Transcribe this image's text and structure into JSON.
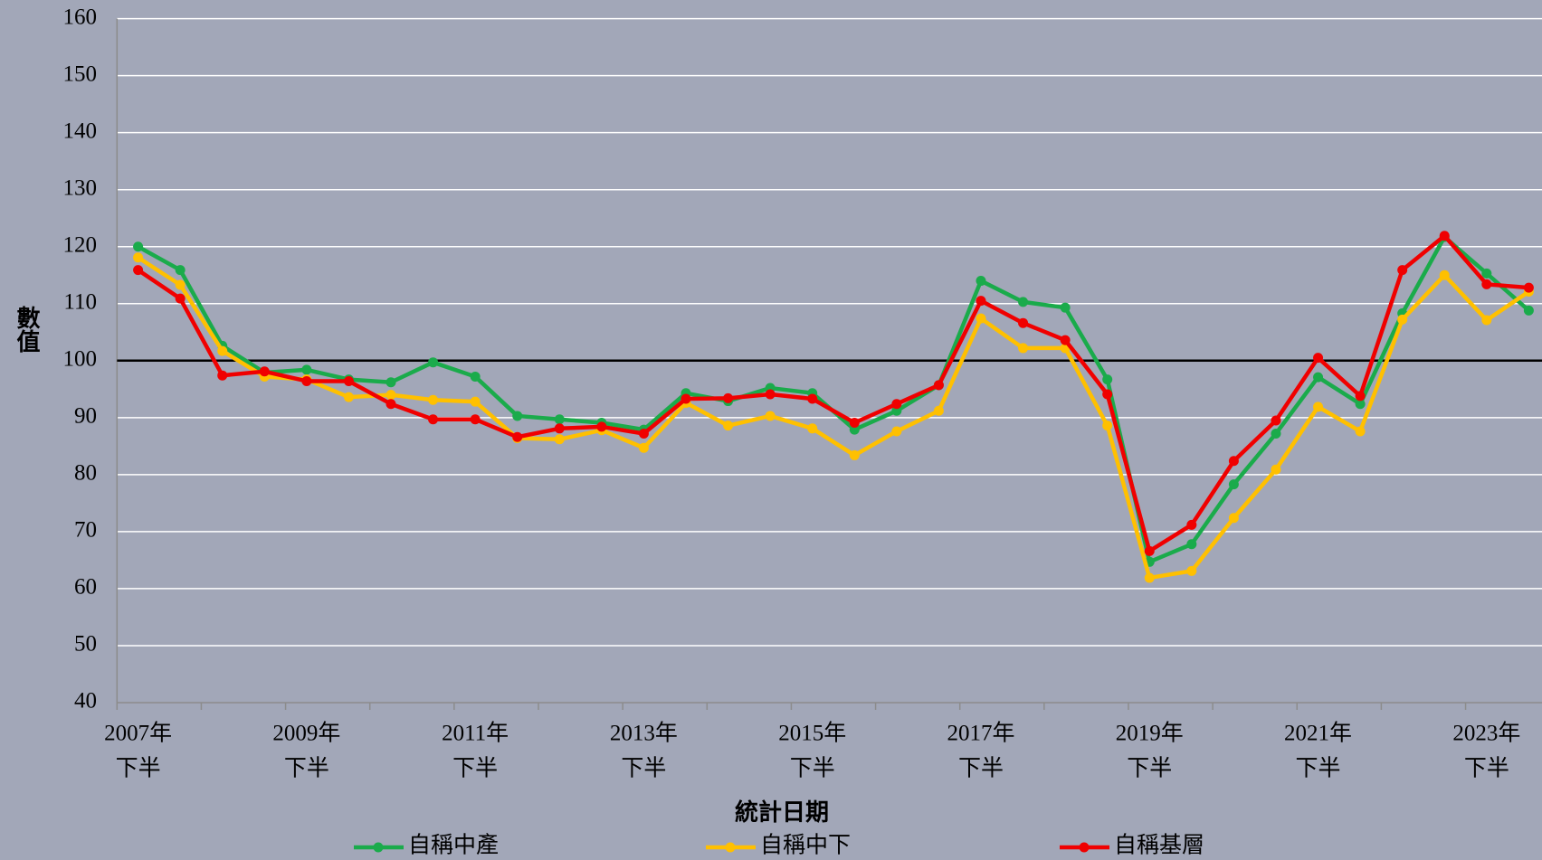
{
  "chart_data": {
    "type": "line",
    "x_label": "統計日期",
    "y_label": "數值",
    "categories": [
      [
        "2007年",
        "下半"
      ],
      null,
      null,
      null,
      [
        "2009年",
        "下半"
      ],
      null,
      null,
      null,
      [
        "2011年",
        "下半"
      ],
      null,
      null,
      null,
      [
        "2013年",
        "下半"
      ],
      null,
      null,
      null,
      [
        "2015年",
        "下半"
      ],
      null,
      null,
      null,
      [
        "2017年",
        "下半"
      ],
      null,
      null,
      null,
      [
        "2019年",
        "下半"
      ],
      null,
      null,
      null,
      [
        "2021年",
        "下半"
      ],
      null,
      null,
      null,
      [
        "2023年",
        "下半"
      ],
      null
    ],
    "series": [
      {
        "name": "自稱中產",
        "color": "#1aab4b",
        "values": [
          120,
          115.9,
          102.6,
          97.9,
          98.4,
          96.7,
          96.2,
          99.7,
          97.2,
          90.3,
          89.7,
          89.1,
          87.9,
          94.3,
          92.9,
          95.2,
          94.3,
          87.9,
          91.2,
          95.7,
          114,
          110.3,
          109.3,
          96.7,
          64.7,
          67.8,
          78.3,
          87.2,
          97.1,
          92.4,
          108.3,
          121.7,
          115.3,
          108.8
        ]
      },
      {
        "name": "自稱中下",
        "color": "#ffc000",
        "values": [
          118.1,
          113.3,
          101.7,
          97.2,
          96.7,
          93.6,
          94,
          93.1,
          92.8,
          86.4,
          86.2,
          87.8,
          84.7,
          92.6,
          88.6,
          90.3,
          88.1,
          83.4,
          87.6,
          91.2,
          107.4,
          102.2,
          102.2,
          88.6,
          61.9,
          63.1,
          72.4,
          80.9,
          91.9,
          87.6,
          107.2,
          115,
          107.1,
          112.1
        ]
      },
      {
        "name": "自稱基層",
        "color": "#f00000",
        "values": [
          115.9,
          110.9,
          97.4,
          98.1,
          96.4,
          96.4,
          92.4,
          89.7,
          89.7,
          86.6,
          88.1,
          88.4,
          87.2,
          93.3,
          93.4,
          94.1,
          93.3,
          89.1,
          92.4,
          95.7,
          110.5,
          106.6,
          103.6,
          94.1,
          66.6,
          71.2,
          82.4,
          89.5,
          100.5,
          93.8,
          115.9,
          121.9,
          113.4,
          112.8
        ]
      }
    ],
    "ylim": [
      40,
      160
    ],
    "yticks": [
      40,
      50,
      60,
      70,
      80,
      90,
      100,
      110,
      120,
      130,
      140,
      150,
      160
    ],
    "grid": true,
    "reference_line": 100,
    "legend": "bottom"
  }
}
